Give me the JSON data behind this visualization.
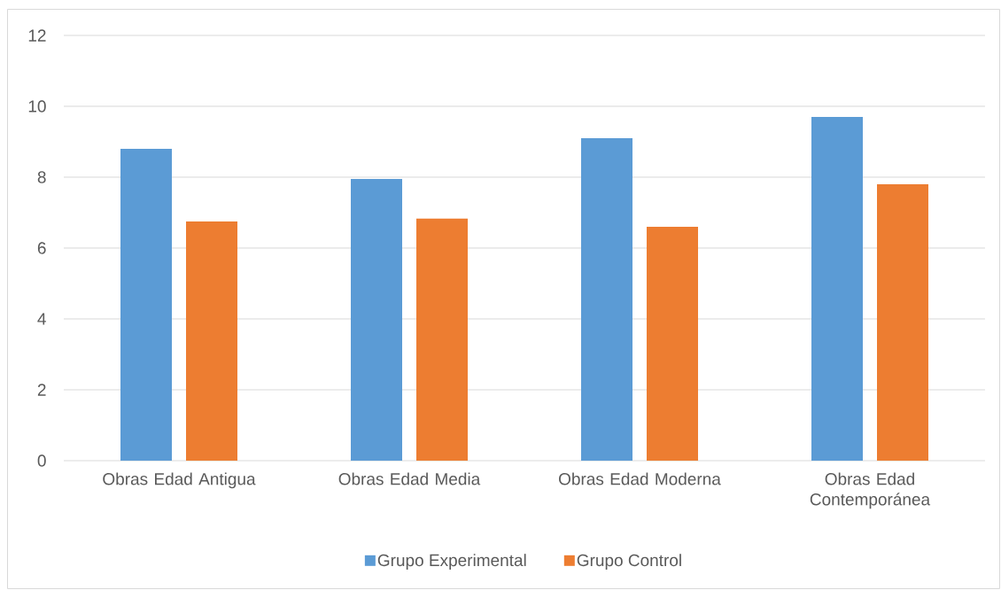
{
  "chart_data": {
    "type": "bar",
    "categories": [
      "Obras Edad Antigua",
      "Obras Edad Media",
      "Obras Edad Moderna",
      "Obras Edad Contemporánea"
    ],
    "series": [
      {
        "name": "Grupo Experimental",
        "color": "#5b9bd5",
        "values": [
          8.8,
          7.95,
          9.1,
          9.7
        ]
      },
      {
        "name": "Grupo Control",
        "color": "#ed7d31",
        "values": [
          6.75,
          6.83,
          6.6,
          7.8
        ]
      }
    ],
    "ylim": [
      0,
      12
    ],
    "yticks": [
      0,
      2,
      4,
      6,
      8,
      10,
      12
    ],
    "grid": "y",
    "legend": "bottom"
  }
}
